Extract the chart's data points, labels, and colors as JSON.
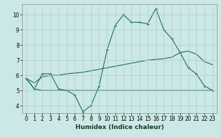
{
  "xlabel": "Humidex (Indice chaleur)",
  "background_color": "#cce8e6",
  "grid_color": "#aaccca",
  "line_color": "#1a6b5a",
  "x_values": [
    0,
    1,
    2,
    3,
    4,
    5,
    6,
    7,
    8,
    9,
    10,
    11,
    12,
    13,
    14,
    15,
    16,
    17,
    18,
    19,
    20,
    21,
    22,
    23
  ],
  "line1_y": [
    5.8,
    5.1,
    6.1,
    6.1,
    5.1,
    5.0,
    4.7,
    3.6,
    4.0,
    5.3,
    7.7,
    9.3,
    10.0,
    9.5,
    9.5,
    9.4,
    10.4,
    9.0,
    8.4,
    7.5,
    6.5,
    6.1,
    5.3,
    5.0
  ],
  "line2_y": [
    5.8,
    5.5,
    5.9,
    6.0,
    6.0,
    6.1,
    6.15,
    6.2,
    6.3,
    6.4,
    6.5,
    6.6,
    6.7,
    6.8,
    6.9,
    7.0,
    7.05,
    7.1,
    7.2,
    7.5,
    7.6,
    7.4,
    6.9,
    6.7
  ],
  "line3_y": [
    5.8,
    5.1,
    5.0,
    5.0,
    5.0,
    5.0,
    5.0,
    5.0,
    5.0,
    5.0,
    5.0,
    5.0,
    5.0,
    5.0,
    5.0,
    5.0,
    5.0,
    5.0,
    5.0,
    5.0,
    5.0,
    5.0,
    5.0,
    5.0
  ],
  "xlim": [
    -0.5,
    23.5
  ],
  "ylim": [
    3.5,
    10.7
  ],
  "yticks": [
    4,
    5,
    6,
    7,
    8,
    9,
    10
  ],
  "xticks": [
    0,
    1,
    2,
    3,
    4,
    5,
    6,
    7,
    8,
    9,
    10,
    11,
    12,
    13,
    14,
    15,
    16,
    17,
    18,
    19,
    20,
    21,
    22,
    23
  ],
  "tick_fontsize": 5.5,
  "label_fontsize": 6.5
}
